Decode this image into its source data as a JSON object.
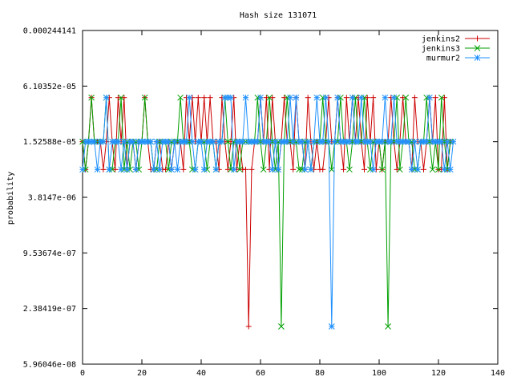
{
  "chart_data": {
    "type": "line",
    "title": "Hash size 131071",
    "xlabel": "",
    "ylabel": "probability",
    "xlim": [
      0,
      140
    ],
    "ylim": [
      5.96046e-08,
      0.000244141
    ],
    "yscale": "log2",
    "xticks": [
      0,
      20,
      40,
      60,
      80,
      100,
      120,
      140
    ],
    "yticks": [
      {
        "value": 0.000244141,
        "label": "0.000244141"
      },
      {
        "value": 6.10352e-05,
        "label": "6.10352e-05"
      },
      {
        "value": 1.52588e-05,
        "label": "1.52588e-05"
      },
      {
        "value": 3.8147e-06,
        "label": "3.8147e-06"
      },
      {
        "value": 9.53674e-07,
        "label": "9.53674e-07"
      },
      {
        "value": 2.38419e-07,
        "label": "2.38419e-07"
      },
      {
        "value": 5.96046e-08,
        "label": "5.96046e-08"
      }
    ],
    "grid": false,
    "legend_position": "top-right",
    "series": [
      {
        "name": "jenkins2",
        "color": "#cc0000",
        "marker": "plus",
        "points": [
          [
            0,
            1.526e-05
          ],
          [
            1,
            1.526e-05
          ],
          [
            2,
            1.526e-05
          ],
          [
            3,
            7.63e-06
          ],
          [
            4,
            1.526e-05
          ],
          [
            5,
            1.526e-05
          ],
          [
            6,
            1.526e-05
          ],
          [
            7,
            1.526e-05
          ],
          [
            8,
            7.63e-06
          ],
          [
            9,
            1.526e-05
          ],
          [
            10,
            1.526e-05
          ],
          [
            11,
            1.526e-05
          ],
          [
            12,
            1.526e-05
          ],
          [
            13,
            1.526e-05
          ],
          [
            14,
            1.526e-05
          ],
          [
            15,
            1.526e-05
          ],
          [
            16,
            1.526e-05
          ],
          [
            17,
            1.526e-05
          ],
          [
            18,
            1.526e-05
          ],
          [
            19,
            1.526e-05
          ],
          [
            20,
            1.526e-05
          ],
          [
            21,
            1.526e-05
          ],
          [
            22,
            1.526e-05
          ],
          [
            23,
            1.526e-05
          ],
          [
            24,
            1.526e-05
          ],
          [
            25,
            1.526e-05
          ],
          [
            26,
            1.526e-05
          ],
          [
            27,
            1.526e-05
          ],
          [
            28,
            1.526e-05
          ],
          [
            29,
            1.526e-05
          ],
          [
            30,
            1.526e-05
          ],
          [
            31,
            1.526e-05
          ],
          [
            32,
            1.526e-05
          ],
          [
            33,
            1.526e-05
          ],
          [
            34,
            1.526e-05
          ],
          [
            35,
            1.526e-05
          ],
          [
            36,
            1.526e-05
          ],
          [
            37,
            1.526e-05
          ],
          [
            38,
            1.526e-05
          ],
          [
            39,
            1.526e-05
          ],
          [
            40,
            1.526e-05
          ],
          [
            41,
            1.526e-05
          ],
          [
            42,
            1.526e-05
          ],
          [
            43,
            1.526e-05
          ],
          [
            44,
            1.526e-05
          ],
          [
            45,
            1.526e-05
          ],
          [
            46,
            1.526e-05
          ],
          [
            47,
            1.526e-05
          ],
          [
            48,
            1.526e-05
          ],
          [
            49,
            1.526e-05
          ],
          [
            50,
            1.526e-05
          ],
          [
            51,
            1.526e-05
          ],
          [
            52,
            1.526e-05
          ],
          [
            53,
            1.526e-05
          ],
          [
            54,
            1.526e-05
          ],
          [
            55,
            1.526e-05
          ],
          [
            56,
            1.526e-05
          ],
          [
            57,
            1.526e-05
          ],
          [
            58,
            1.526e-05
          ],
          [
            59,
            1.526e-05
          ],
          [
            60,
            1.526e-05
          ],
          [
            61,
            1.526e-05
          ],
          [
            62,
            1.526e-05
          ],
          [
            63,
            1.526e-05
          ],
          [
            64,
            1.526e-05
          ],
          [
            65,
            1.526e-05
          ],
          [
            66,
            1.526e-05
          ],
          [
            67,
            1.526e-05
          ],
          [
            68,
            1.526e-05
          ],
          [
            69,
            1.526e-05
          ],
          [
            70,
            1.526e-05
          ],
          [
            71,
            1.526e-05
          ],
          [
            72,
            1.526e-05
          ],
          [
            73,
            1.526e-05
          ],
          [
            74,
            1.526e-05
          ],
          [
            75,
            1.526e-05
          ],
          [
            76,
            1.526e-05
          ],
          [
            77,
            1.526e-05
          ],
          [
            78,
            1.526e-05
          ],
          [
            79,
            1.526e-05
          ],
          [
            80,
            1.526e-05
          ],
          [
            81,
            1.526e-05
          ],
          [
            82,
            1.526e-05
          ],
          [
            83,
            1.526e-05
          ],
          [
            84,
            1.526e-05
          ],
          [
            85,
            1.526e-05
          ],
          [
            86,
            1.526e-05
          ],
          [
            87,
            1.526e-05
          ],
          [
            88,
            1.526e-05
          ],
          [
            89,
            1.526e-05
          ],
          [
            90,
            1.526e-05
          ],
          [
            91,
            1.526e-05
          ],
          [
            92,
            1.526e-05
          ],
          [
            93,
            1.526e-05
          ],
          [
            94,
            1.526e-05
          ],
          [
            95,
            1.526e-05
          ],
          [
            96,
            1.526e-05
          ],
          [
            97,
            1.526e-05
          ],
          [
            98,
            1.526e-05
          ],
          [
            99,
            1.526e-05
          ],
          [
            100,
            1.526e-05
          ],
          [
            101,
            1.526e-05
          ],
          [
            102,
            1.526e-05
          ],
          [
            103,
            1.526e-05
          ],
          [
            104,
            1.526e-05
          ],
          [
            105,
            1.526e-05
          ],
          [
            106,
            1.526e-05
          ],
          [
            107,
            1.526e-05
          ],
          [
            108,
            1.526e-05
          ],
          [
            109,
            1.526e-05
          ],
          [
            110,
            1.526e-05
          ],
          [
            111,
            1.526e-05
          ],
          [
            112,
            1.526e-05
          ],
          [
            113,
            1.526e-05
          ],
          [
            114,
            1.526e-05
          ],
          [
            115,
            1.526e-05
          ],
          [
            116,
            1.526e-05
          ],
          [
            117,
            1.526e-05
          ],
          [
            118,
            1.526e-05
          ],
          [
            119,
            1.526e-05
          ],
          [
            120,
            1.526e-05
          ],
          [
            121,
            1.526e-05
          ],
          [
            122,
            1.526e-05
          ],
          [
            123,
            1.526e-05
          ],
          [
            124,
            1.526e-05
          ]
        ],
        "overrides": {
          "1": 7.63e-06,
          "3": 4.58e-05,
          "7": 7.63e-06,
          "9": 4.58e-05,
          "11": 7.63e-06,
          "12": 4.58e-05,
          "14": 4.58e-05,
          "15": 7.63e-06,
          "18": 7.63e-06,
          "21": 4.58e-05,
          "23": 7.63e-06,
          "24": 7.63e-06,
          "27": 7.63e-06,
          "28": 7.63e-06,
          "30": 7.63e-06,
          "34": 7.63e-06,
          "35": 4.58e-05,
          "37": 4.58e-05,
          "39": 4.58e-05,
          "41": 4.58e-05,
          "43": 4.58e-05,
          "46": 7.63e-06,
          "47": 4.58e-05,
          "49": 7.63e-06,
          "51": 4.58e-05,
          "52": 7.63e-06,
          "54": 7.63e-06,
          "55": 7.63e-06,
          "56": 1.526e-07,
          "57": 7.63e-06,
          "60": 4.58e-05,
          "62": 4.58e-05,
          "63": 7.63e-06,
          "64": 4.58e-05,
          "66": 7.63e-06,
          "68": 4.58e-05,
          "71": 7.63e-06,
          "72": 4.58e-05,
          "75": 7.63e-06,
          "76": 4.58e-05,
          "78": 7.63e-06,
          "80": 7.63e-06,
          "81": 7.63e-06,
          "83": 4.58e-05,
          "86": 4.58e-05,
          "88": 7.63e-06,
          "89": 4.58e-05,
          "91": 4.58e-05,
          "93": 4.58e-05,
          "95": 7.63e-06,
          "96": 4.58e-05,
          "98": 4.58e-05,
          "99": 7.63e-06,
          "101": 7.63e-06,
          "104": 4.58e-05,
          "106": 7.63e-06,
          "108": 4.58e-05,
          "111": 7.63e-06,
          "112": 4.58e-05,
          "115": 7.63e-06,
          "117": 4.58e-05,
          "119": 4.58e-05,
          "120": 7.63e-06,
          "121": 7.63e-06,
          "122": 4.58e-05,
          "123": 7.63e-06
        }
      },
      {
        "name": "jenkins3",
        "color": "#00a000",
        "marker": "cross",
        "points": [
          [
            0,
            1.526e-05
          ],
          [
            124,
            1.526e-05
          ]
        ],
        "overrides": {
          "1": 7.63e-06,
          "3": 4.58e-05,
          "8": 4.58e-05,
          "9": 7.63e-06,
          "10": 7.63e-06,
          "13": 4.58e-05,
          "14": 7.63e-06,
          "16": 7.63e-06,
          "19": 7.63e-06,
          "21": 4.58e-05,
          "24": 7.63e-06,
          "25": 7.63e-06,
          "29": 7.63e-06,
          "33": 4.58e-05,
          "37": 7.63e-06,
          "38": 7.63e-06,
          "42": 7.63e-06,
          "45": 7.63e-06,
          "48": 4.58e-05,
          "50": 7.63e-06,
          "53": 7.63e-06,
          "59": 4.58e-05,
          "61": 7.63e-06,
          "63": 4.58e-05,
          "65": 7.63e-06,
          "67": 1.526e-07,
          "69": 4.58e-05,
          "73": 7.63e-06,
          "74": 7.63e-06,
          "77": 7.63e-06,
          "81": 4.58e-05,
          "84": 7.63e-06,
          "87": 4.58e-05,
          "90": 7.63e-06,
          "92": 4.58e-05,
          "95": 4.58e-05,
          "97": 7.63e-06,
          "101": 7.63e-06,
          "103": 1.526e-07,
          "106": 4.58e-05,
          "107": 7.63e-06,
          "109": 4.58e-05,
          "112": 7.63e-06,
          "113": 7.63e-06,
          "116": 4.58e-05,
          "118": 7.63e-06,
          "120": 7.63e-06,
          "121": 4.58e-05,
          "123": 7.63e-06,
          "125": 7.63e-06
        }
      },
      {
        "name": "murmur2",
        "color": "#1e90ff",
        "marker": "star",
        "points": [
          [
            0,
            1.526e-05
          ],
          [
            125,
            1.526e-05
          ]
        ],
        "overrides": {
          "0": 7.63e-06,
          "5": 7.63e-06,
          "8": 4.58e-05,
          "9": 7.63e-06,
          "13": 7.63e-06,
          "15": 7.63e-06,
          "18": 7.63e-06,
          "24": 7.63e-06,
          "26": 7.63e-06,
          "30": 7.63e-06,
          "32": 7.63e-06,
          "36": 4.58e-05,
          "38": 7.63e-06,
          "41": 7.63e-06,
          "45": 7.63e-06,
          "48": 4.58e-05,
          "49": 4.58e-05,
          "50": 4.58e-05,
          "51": 7.63e-06,
          "55": 4.58e-05,
          "60": 4.58e-05,
          "64": 7.63e-06,
          "66": 7.63e-06,
          "70": 4.58e-05,
          "72": 4.58e-05,
          "75": 7.63e-06,
          "77": 7.63e-06,
          "79": 4.58e-05,
          "82": 4.58e-05,
          "84": 1.526e-07,
          "86": 4.58e-05,
          "91": 4.58e-05,
          "94": 4.58e-05,
          "98": 7.63e-06,
          "102": 4.58e-05,
          "105": 4.58e-05,
          "111": 7.63e-06,
          "113": 7.63e-06,
          "117": 4.58e-05,
          "122": 7.63e-06,
          "124": 7.63e-06
        }
      }
    ]
  }
}
